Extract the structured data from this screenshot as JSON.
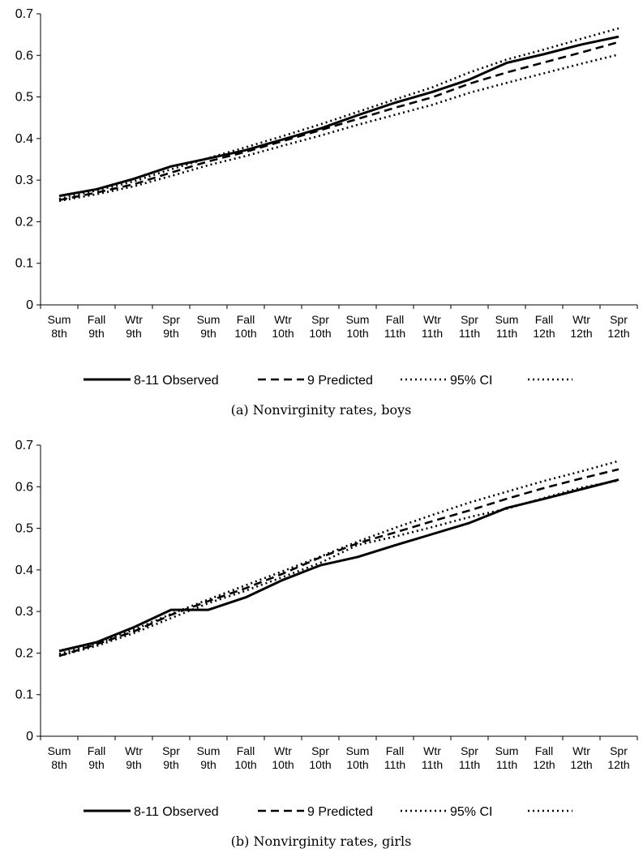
{
  "chart_data": [
    {
      "type": "line",
      "caption": "(a) Nonvirginity rates, boys",
      "categories": [
        [
          "Sum",
          "8th"
        ],
        [
          "Fall",
          "9th"
        ],
        [
          "Wtr",
          "9th"
        ],
        [
          "Spr",
          "9th"
        ],
        [
          "Sum",
          "9th"
        ],
        [
          "Fall",
          "10th"
        ],
        [
          "Wtr",
          "10th"
        ],
        [
          "Spr",
          "10th"
        ],
        [
          "Sum",
          "10th"
        ],
        [
          "Fall",
          "11th"
        ],
        [
          "Wtr",
          "11th"
        ],
        [
          "Spr",
          "11th"
        ],
        [
          "Sum",
          "11th"
        ],
        [
          "Fall",
          "12th"
        ],
        [
          "Wtr",
          "12th"
        ],
        [
          "Spr",
          "12th"
        ]
      ],
      "ylim": [
        0,
        0.7
      ],
      "yticks": [
        "0",
        "0.1",
        "0.2",
        "0.3",
        "0.4",
        "0.5",
        "0.6",
        "0.7"
      ],
      "legend_position": "bottom",
      "series": [
        {
          "name": "8-11 Observed",
          "style": "solid",
          "values": [
            0.262,
            0.278,
            0.303,
            0.333,
            0.352,
            0.372,
            0.398,
            0.424,
            0.456,
            0.486,
            0.512,
            0.542,
            0.582,
            0.603,
            0.626,
            0.645
          ]
        },
        {
          "name": "9 Predicted",
          "style": "dashed",
          "values": [
            0.252,
            0.27,
            0.29,
            0.318,
            0.345,
            0.368,
            0.394,
            0.42,
            0.447,
            0.474,
            0.499,
            0.532,
            0.559,
            0.583,
            0.607,
            0.632
          ]
        },
        {
          "name": "95% CI",
          "style": "dotted",
          "values": [
            0.255,
            0.275,
            0.297,
            0.326,
            0.353,
            0.379,
            0.406,
            0.434,
            0.464,
            0.494,
            0.523,
            0.559,
            0.59,
            0.614,
            0.64,
            0.665
          ]
        },
        {
          "name": "",
          "style": "dotted",
          "values": [
            0.25,
            0.266,
            0.285,
            0.31,
            0.336,
            0.358,
            0.383,
            0.407,
            0.433,
            0.457,
            0.481,
            0.51,
            0.534,
            0.557,
            0.58,
            0.602
          ]
        }
      ]
    },
    {
      "type": "line",
      "caption": "(b) Nonvirginity rates, girls",
      "categories": [
        [
          "Sum",
          "8th"
        ],
        [
          "Fall",
          "9th"
        ],
        [
          "Wtr",
          "9th"
        ],
        [
          "Spr",
          "9th"
        ],
        [
          "Sum",
          "9th"
        ],
        [
          "Fall",
          "10th"
        ],
        [
          "Wtr",
          "10th"
        ],
        [
          "Spr",
          "10th"
        ],
        [
          "Sum",
          "10th"
        ],
        [
          "Fall",
          "11th"
        ],
        [
          "Wtr",
          "11th"
        ],
        [
          "Spr",
          "11th"
        ],
        [
          "Sum",
          "11th"
        ],
        [
          "Fall",
          "12th"
        ],
        [
          "Wtr",
          "12th"
        ],
        [
          "Spr",
          "12th"
        ]
      ],
      "ylim": [
        0,
        0.7
      ],
      "yticks": [
        "0",
        "0.1",
        "0.2",
        "0.3",
        "0.4",
        "0.5",
        "0.6",
        "0.7"
      ],
      "legend_position": "bottom",
      "series": [
        {
          "name": "8-11 Observed",
          "style": "solid",
          "values": [
            0.205,
            0.226,
            0.262,
            0.304,
            0.304,
            0.334,
            0.376,
            0.411,
            0.431,
            0.459,
            0.486,
            0.513,
            0.549,
            0.571,
            0.594,
            0.617
          ]
        },
        {
          "name": "9 Predicted",
          "style": "dashed",
          "values": [
            0.193,
            0.221,
            0.252,
            0.292,
            0.325,
            0.356,
            0.391,
            0.43,
            0.464,
            0.49,
            0.517,
            0.543,
            0.571,
            0.597,
            0.62,
            0.642
          ]
        },
        {
          "name": "95% CI",
          "style": "dotted",
          "values": [
            0.198,
            0.222,
            0.256,
            0.294,
            0.329,
            0.363,
            0.397,
            0.432,
            0.468,
            0.501,
            0.532,
            0.562,
            0.588,
            0.614,
            0.637,
            0.662
          ]
        },
        {
          "name": "",
          "style": "dotted",
          "values": [
            0.193,
            0.217,
            0.248,
            0.284,
            0.32,
            0.35,
            0.383,
            0.417,
            0.46,
            0.48,
            0.503,
            0.527,
            0.547,
            0.573,
            0.598,
            0.615
          ]
        }
      ]
    }
  ]
}
